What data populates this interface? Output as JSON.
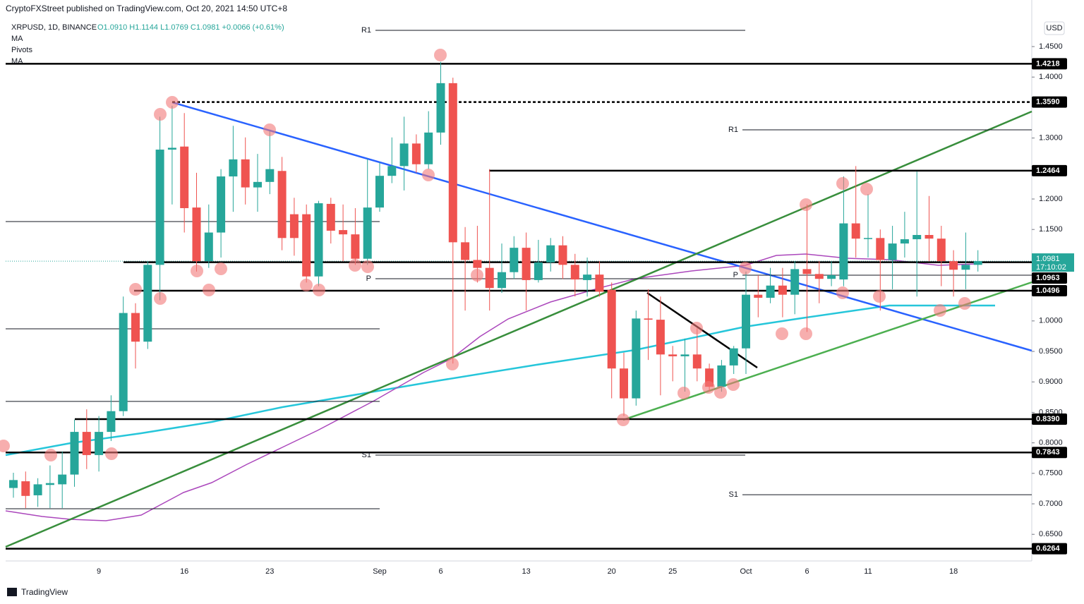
{
  "header": {
    "publisher": "CryptoFXStreet published on TradingView.com, Oct 20, 2021 14:50 UTC+8",
    "symbol": "XRPUSD, 1D, BINANCE",
    "quote": "O1.0910 H1.1144 L1.0769 C1.0981 +0.0066 (+0.61%)",
    "indicators": [
      "MA",
      "Pivots",
      "MA"
    ],
    "currency": "USD",
    "logo": "TradingView"
  },
  "chart_data": {
    "type": "candlestick",
    "up_color": "#26a69a",
    "down_color": "#ef5350",
    "categories": [
      null,
      null,
      null,
      null,
      null,
      null,
      null,
      "9",
      null,
      null,
      null,
      null,
      null,
      null,
      "16",
      null,
      null,
      null,
      null,
      null,
      null,
      "23",
      null,
      null,
      null,
      null,
      null,
      null,
      null,
      null,
      "Sep",
      null,
      null,
      null,
      null,
      "6",
      null,
      null,
      null,
      null,
      null,
      null,
      "13",
      null,
      null,
      null,
      null,
      null,
      null,
      "20",
      null,
      null,
      null,
      null,
      "25",
      null,
      null,
      null,
      null,
      null,
      "Oct",
      null,
      null,
      null,
      null,
      "6",
      null,
      null,
      null,
      null,
      "11",
      null,
      null,
      null,
      null,
      null,
      null,
      "18",
      null,
      null
    ],
    "open": [
      0.726,
      0.737,
      0.714,
      0.731,
      0.732,
      0.748,
      0.818,
      0.78,
      0.818,
      0.852,
      1.013,
      0.966,
      1.092,
      1.281,
      1.286,
      1.186,
      1.098,
      1.145,
      1.237,
      1.265,
      1.219,
      1.228,
      1.246,
      1.175,
      1.175,
      1.073,
      1.192,
      1.149,
      1.142,
      1.102,
      1.186,
      1.238,
      1.254,
      1.291,
      1.257,
      1.309,
      1.39,
      1.129,
      1.1,
      1.087,
      1.054,
      1.08,
      1.12,
      1.067,
      1.096,
      1.124,
      1.092,
      1.067,
      1.076,
      1.051,
      0.922,
      0.873,
      1.004,
      1.002,
      0.945,
      0.942,
      0.945,
      0.922,
      0.892,
      0.927,
      0.955,
      1.043,
      1.038,
      1.058,
      1.043,
      1.085,
      1.077,
      1.069,
      1.068,
      1.16,
      1.135,
      1.136,
      1.1,
      1.127,
      1.134,
      1.141,
      1.135,
      1.098,
      1.084,
      1.092
    ],
    "high": [
      0.751,
      0.753,
      0.742,
      0.763,
      0.786,
      0.838,
      0.855,
      0.844,
      0.878,
      1.04,
      1.029,
      1.098,
      1.335,
      1.353,
      1.341,
      1.243,
      1.191,
      1.249,
      1.32,
      1.301,
      1.274,
      1.312,
      1.269,
      1.202,
      1.191,
      1.197,
      1.202,
      1.191,
      1.185,
      1.266,
      1.26,
      1.301,
      1.335,
      1.306,
      1.344,
      1.425,
      1.399,
      1.154,
      1.156,
      1.249,
      1.127,
      1.139,
      1.145,
      1.133,
      1.136,
      1.139,
      1.11,
      1.104,
      1.098,
      1.063,
      0.948,
      1.017,
      1.052,
      1.04,
      0.959,
      0.971,
      0.988,
      0.93,
      0.936,
      0.959,
      1.081,
      1.075,
      1.087,
      1.087,
      1.098,
      1.191,
      1.098,
      1.098,
      1.237,
      1.254,
      1.208,
      1.15,
      1.156,
      1.179,
      1.245,
      1.205,
      1.156,
      1.116,
      1.145,
      1.116
    ],
    "low": [
      0.71,
      0.693,
      0.695,
      0.693,
      0.693,
      0.728,
      0.757,
      0.753,
      0.803,
      0.844,
      0.922,
      0.954,
      1.034,
      1.191,
      1.145,
      1.081,
      1.087,
      1.104,
      1.179,
      1.191,
      1.179,
      1.208,
      1.116,
      1.107,
      1.063,
      1.057,
      1.127,
      1.098,
      1.092,
      1.092,
      1.179,
      1.226,
      1.214,
      1.243,
      1.249,
      1.289,
      0.93,
      1.017,
      1.063,
      1.017,
      1.046,
      1.069,
      1.017,
      1.063,
      1.081,
      1.069,
      1.04,
      1.04,
      1.04,
      0.873,
      0.844,
      0.861,
      0.936,
      0.878,
      0.901,
      0.884,
      0.901,
      0.884,
      0.884,
      0.913,
      0.913,
      1.006,
      1.029,
      1.006,
      1.011,
      0.982,
      1.029,
      1.057,
      1.057,
      1.104,
      1.104,
      1.017,
      1.052,
      1.104,
      1.04,
      1.098,
      1.057,
      1.04,
      1.052,
      1.081
    ],
    "close": [
      0.739,
      0.713,
      0.732,
      0.734,
      0.748,
      0.818,
      0.78,
      0.818,
      0.852,
      1.013,
      0.966,
      1.092,
      1.281,
      1.284,
      1.185,
      1.098,
      1.145,
      1.237,
      1.265,
      1.219,
      1.228,
      1.249,
      1.136,
      1.136,
      1.073,
      1.193,
      1.148,
      1.142,
      1.102,
      1.186,
      1.238,
      1.254,
      1.291,
      1.257,
      1.309,
      1.39,
      1.129,
      1.1,
      1.087,
      1.054,
      1.08,
      1.12,
      1.067,
      1.096,
      1.124,
      1.092,
      1.068,
      1.076,
      1.048,
      0.922,
      0.873,
      1.004,
      1.002,
      0.945,
      0.942,
      0.945,
      0.922,
      0.892,
      0.927,
      0.955,
      1.043,
      1.038,
      1.058,
      1.043,
      1.085,
      1.077,
      1.069,
      1.075,
      1.16,
      1.135,
      1.136,
      1.1,
      1.127,
      1.134,
      1.141,
      1.135,
      1.098,
      1.084,
      1.092,
      1.098
    ],
    "ylim": [
      0.6063,
      1.5264
    ],
    "yticks": [
      {
        "value": 1.45,
        "label": "1.4500"
      },
      {
        "value": 1.4,
        "label": "1.4000"
      },
      {
        "value": 1.3,
        "label": "1.3000"
      },
      {
        "value": 1.2,
        "label": "1.2000"
      },
      {
        "value": 1.15,
        "label": "1.1500"
      },
      {
        "value": 1.0,
        "label": "1.0000"
      },
      {
        "value": 0.95,
        "label": "0.9500"
      },
      {
        "value": 0.9,
        "label": "0.9000"
      },
      {
        "value": 0.85,
        "label": "0.8500"
      },
      {
        "value": 0.8,
        "label": "0.8000"
      },
      {
        "value": 0.75,
        "label": "0.7500"
      },
      {
        "value": 0.7,
        "label": "0.7000"
      },
      {
        "value": 0.65,
        "label": "0.6500"
      }
    ],
    "levels": [
      {
        "value": 1.4218,
        "label": "1.4218"
      },
      {
        "value": 1.359,
        "label": "1.3590"
      },
      {
        "value": 1.2464,
        "label": "1.2464"
      },
      {
        "value": 1.0963,
        "label": "1.0963"
      },
      {
        "value": 1.0496,
        "label": "1.0496"
      },
      {
        "value": 0.839,
        "label": "0.8390"
      },
      {
        "value": 0.7843,
        "label": "0.7843"
      },
      {
        "value": 0.6264,
        "label": "0.6264"
      }
    ],
    "last_price": {
      "value": 1.0981,
      "label": "1.0981",
      "countdown": "17:10:02"
    },
    "pivots": [
      {
        "levels": [
          {
            "label": null,
            "value": 1.163
          },
          {
            "label": null,
            "value": 0.987
          },
          {
            "label": null,
            "value": 0.868
          },
          {
            "label": null,
            "value": 0.692
          }
        ]
      },
      {
        "levels": [
          {
            "label": "R1",
            "value": 1.4766
          },
          {
            "label": "P",
            "value": 1.0692
          },
          {
            "label": "S1",
            "value": 0.7799
          }
        ]
      },
      {
        "levels": [
          {
            "label": "R1",
            "value": 1.3134
          },
          {
            "label": "P",
            "value": 1.075
          },
          {
            "label": "S1",
            "value": 0.715
          }
        ]
      }
    ]
  }
}
